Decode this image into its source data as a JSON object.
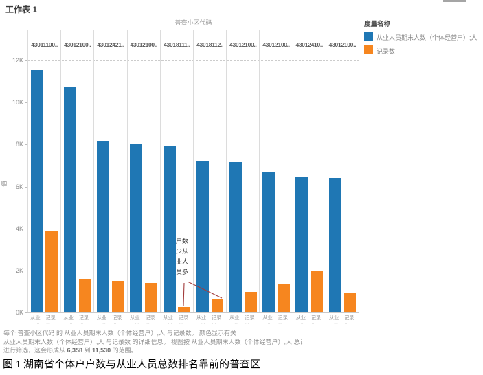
{
  "title": "工作表 1",
  "legend": {
    "title": "度量名称",
    "items": [
      {
        "label": "从业人员期末人数（个体经营户）;人",
        "color": "#1F77B4"
      },
      {
        "label": "记录数",
        "color": "#F6861F"
      }
    ]
  },
  "chart_data": {
    "type": "bar",
    "title": "工作表 1",
    "x_axis_title": "普查小区代码",
    "y_axis_title": "值",
    "categories": [
      "43011100..",
      "43012100..",
      "43012421..",
      "43012100..",
      "43018111..",
      "43018112..",
      "43012100..",
      "43012100..",
      "43012410..",
      "43012100.."
    ],
    "series": [
      {
        "name": "从业人员期末人数（个体经营户）;人",
        "color": "#1F77B4",
        "bar_label": "从业..",
        "values": [
          11530,
          10750,
          8150,
          8050,
          7900,
          7200,
          7150,
          6700,
          6450,
          6400
        ]
      },
      {
        "name": "记录数",
        "color": "#F6861F",
        "bar_label": "记录..",
        "values": [
          3850,
          1600,
          1500,
          1400,
          250,
          620,
          980,
          1340,
          2000,
          920
        ]
      }
    ],
    "ylim": [
      0,
      12000
    ],
    "y_ticks": [
      "12K",
      "10K",
      "8K",
      "6K",
      "4K",
      "2K",
      "0K"
    ],
    "grid": "dashed line at 12K only",
    "legend_position": "top-right",
    "ellipsis": "… …",
    "annotation": {
      "text": "户数少从业人员多",
      "arrow_color": "#A23B3B"
    }
  },
  "caption": {
    "line1": "每个 普查小区代码 的 从业人员期末人数（个体经营户）;人 与记录数。  颜色显示有关",
    "line2": "从业人员期末人数（个体经营户）;人 与记录数 的详细信息。  视图按 从业人员期末人数（个体经营户）;人 总计",
    "line3_prefix": "进行筛选，这会形成从 ",
    "line3_num1": "6,358",
    "line3_mid": " 到 ",
    "line3_num2": "11,530",
    "line3_suffix": " 的范围。"
  },
  "figure_caption": "图 1  湖南省个体户户数与从业人员总数排名靠前的普查区"
}
